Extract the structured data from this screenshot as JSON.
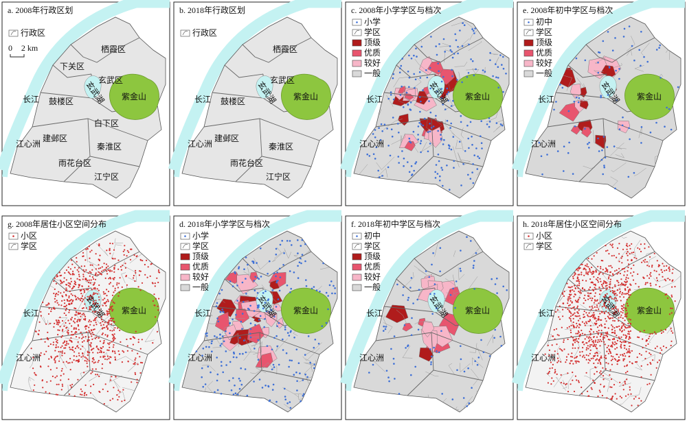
{
  "panels": [
    {
      "title": "a. 2008年行政区划",
      "legend": [
        {
          "label": "行政区",
          "symbol": "zone"
        }
      ],
      "scale_bar": [
        "0",
        "2 km"
      ],
      "places": {
        "river": "长江",
        "island": "江心洲",
        "lake": "玄武湖",
        "mountain": "紫金山"
      },
      "districts": [
        "栖霞区",
        "下关区",
        "玄武区",
        "鼓楼区",
        "白下区",
        "建邺区",
        "秦淮区",
        "雨花台区",
        "江宁区"
      ]
    },
    {
      "title": "b. 2018年行政区划",
      "legend": [
        {
          "label": "行政区",
          "symbol": "zone"
        }
      ],
      "places": {
        "river": "长江",
        "island": "江心洲",
        "lake": "玄武湖",
        "mountain": "紫金山"
      },
      "districts": [
        "栖霞区",
        "玄武区",
        "鼓楼区",
        "建邺区",
        "秦淮区",
        "雨花台区",
        "江宁区"
      ]
    },
    {
      "title": "c. 2008年小学学区与档次",
      "legend": [
        {
          "label": "小学",
          "symbol": "point",
          "color": "#3d6fd6"
        },
        {
          "label": "学区",
          "symbol": "zone"
        },
        {
          "label": "顶级",
          "symbol": "fill",
          "color": "#b01c1c"
        },
        {
          "label": "优质",
          "symbol": "fill",
          "color": "#e8556e"
        },
        {
          "label": "较好",
          "symbol": "fill",
          "color": "#f7b6c8"
        },
        {
          "label": "一般",
          "symbol": "fill",
          "color": "#d9d9d9"
        }
      ],
      "places": {
        "river": "长江",
        "island": "江心洲",
        "lake": "玄武湖",
        "mountain": "紫金山"
      }
    },
    {
      "title": "e. 2008年初中学区与档次",
      "legend": [
        {
          "label": "初中",
          "symbol": "point",
          "color": "#3d6fd6"
        },
        {
          "label": "学区",
          "symbol": "zone"
        },
        {
          "label": "顶级",
          "symbol": "fill",
          "color": "#b01c1c"
        },
        {
          "label": "优质",
          "symbol": "fill",
          "color": "#e8556e"
        },
        {
          "label": "较好",
          "symbol": "fill",
          "color": "#f7b6c8"
        },
        {
          "label": "一般",
          "symbol": "fill",
          "color": "#d9d9d9"
        }
      ],
      "places": {
        "river": "长江",
        "island": "江心洲",
        "lake": "玄武湖",
        "mountain": "紫金山"
      }
    },
    {
      "title": "g. 2008年居住小区空间分布",
      "legend": [
        {
          "label": "小区",
          "symbol": "point",
          "color": "#d32f2f"
        },
        {
          "label": "学区",
          "symbol": "zone"
        }
      ],
      "places": {
        "river": "长江",
        "island": "江心洲",
        "lake": "玄武湖",
        "mountain": "紫金山"
      }
    },
    {
      "title": "d. 2018年小学学区与档次",
      "legend": [
        {
          "label": "小学",
          "symbol": "point",
          "color": "#3d6fd6"
        },
        {
          "label": "学区",
          "symbol": "zone"
        },
        {
          "label": "顶级",
          "symbol": "fill",
          "color": "#b01c1c"
        },
        {
          "label": "优质",
          "symbol": "fill",
          "color": "#e8556e"
        },
        {
          "label": "较好",
          "symbol": "fill",
          "color": "#f7b6c8"
        },
        {
          "label": "一般",
          "symbol": "fill",
          "color": "#d9d9d9"
        }
      ],
      "places": {
        "river": "长江",
        "island": "江心洲",
        "lake": "玄武湖",
        "mountain": "紫金山"
      }
    },
    {
      "title": "f. 2018年初中学区与档次",
      "legend": [
        {
          "label": "初中",
          "symbol": "point",
          "color": "#3d6fd6"
        },
        {
          "label": "学区",
          "symbol": "zone"
        },
        {
          "label": "顶级",
          "symbol": "fill",
          "color": "#b01c1c"
        },
        {
          "label": "优质",
          "symbol": "fill",
          "color": "#e8556e"
        },
        {
          "label": "较好",
          "symbol": "fill",
          "color": "#f7b6c8"
        },
        {
          "label": "一般",
          "symbol": "fill",
          "color": "#d9d9d9"
        }
      ],
      "places": {
        "river": "长江",
        "island": "江心洲",
        "lake": "玄武湖",
        "mountain": "紫金山"
      }
    },
    {
      "title": "h. 2018年居住小区空间分布",
      "legend": [
        {
          "label": "小区",
          "symbol": "point",
          "color": "#d32f2f"
        },
        {
          "label": "学区",
          "symbol": "zone"
        }
      ],
      "places": {
        "river": "长江",
        "island": "江心洲",
        "lake": "玄武湖",
        "mountain": "紫金山"
      }
    }
  ]
}
